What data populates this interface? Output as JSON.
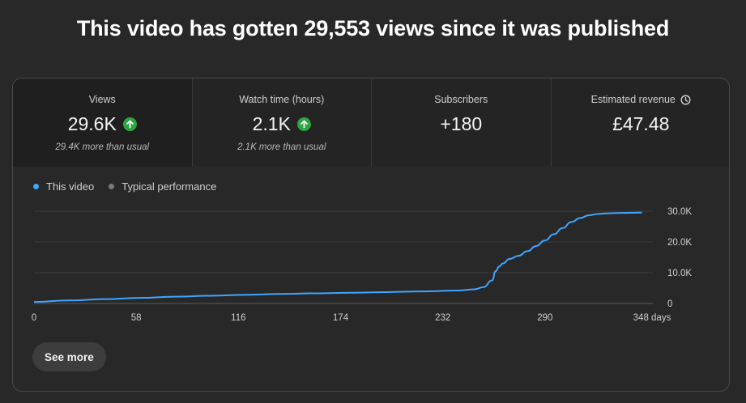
{
  "headline": "This video has gotten 29,553 views since it was published",
  "metrics": [
    {
      "label": "Views",
      "value": "29.6K",
      "sub": "29.4K more than usual",
      "trend": "up-arrow-icon"
    },
    {
      "label": "Watch time (hours)",
      "value": "2.1K",
      "sub": "2.1K more than usual",
      "trend": "up-arrow-icon"
    },
    {
      "label": "Subscribers",
      "value": "+180",
      "sub": ""
    },
    {
      "label": "Estimated revenue",
      "value": "£47.48",
      "sub": "",
      "label_icon": "clock-icon"
    }
  ],
  "legend": {
    "this_video": "This video",
    "typical": "Typical performance"
  },
  "colors": {
    "this_video": "#3ea6ff",
    "typical": "#909090",
    "up": "#2ba640"
  },
  "see_more": "See more",
  "chart_data": {
    "type": "line",
    "x_tick_labels": [
      "0",
      "58",
      "116",
      "174",
      "232",
      "290",
      "348 days"
    ],
    "x_ticks": [
      0,
      58,
      116,
      174,
      232,
      290,
      348
    ],
    "y_tick_labels": [
      "0",
      "10.0K",
      "20.0K",
      "30.0K"
    ],
    "y_ticks": [
      0,
      10000,
      20000,
      30000
    ],
    "xlim": [
      0,
      348
    ],
    "ylim": [
      0,
      30000
    ],
    "grid": true,
    "series": [
      {
        "name": "This video",
        "x": [
          0,
          20,
          40,
          60,
          80,
          100,
          120,
          140,
          160,
          180,
          200,
          220,
          240,
          250,
          255,
          260,
          262,
          264,
          266,
          270,
          275,
          280,
          285,
          290,
          295,
          300,
          305,
          310,
          315,
          320,
          325,
          330,
          335,
          340,
          345
        ],
        "y": [
          500,
          1000,
          1400,
          1800,
          2200,
          2500,
          2800,
          3100,
          3300,
          3500,
          3700,
          3900,
          4200,
          4600,
          5300,
          7500,
          10500,
          12000,
          13000,
          14500,
          15500,
          17000,
          18700,
          20500,
          22500,
          24500,
          26500,
          27800,
          28700,
          29100,
          29300,
          29400,
          29450,
          29500,
          29553
        ]
      }
    ]
  }
}
